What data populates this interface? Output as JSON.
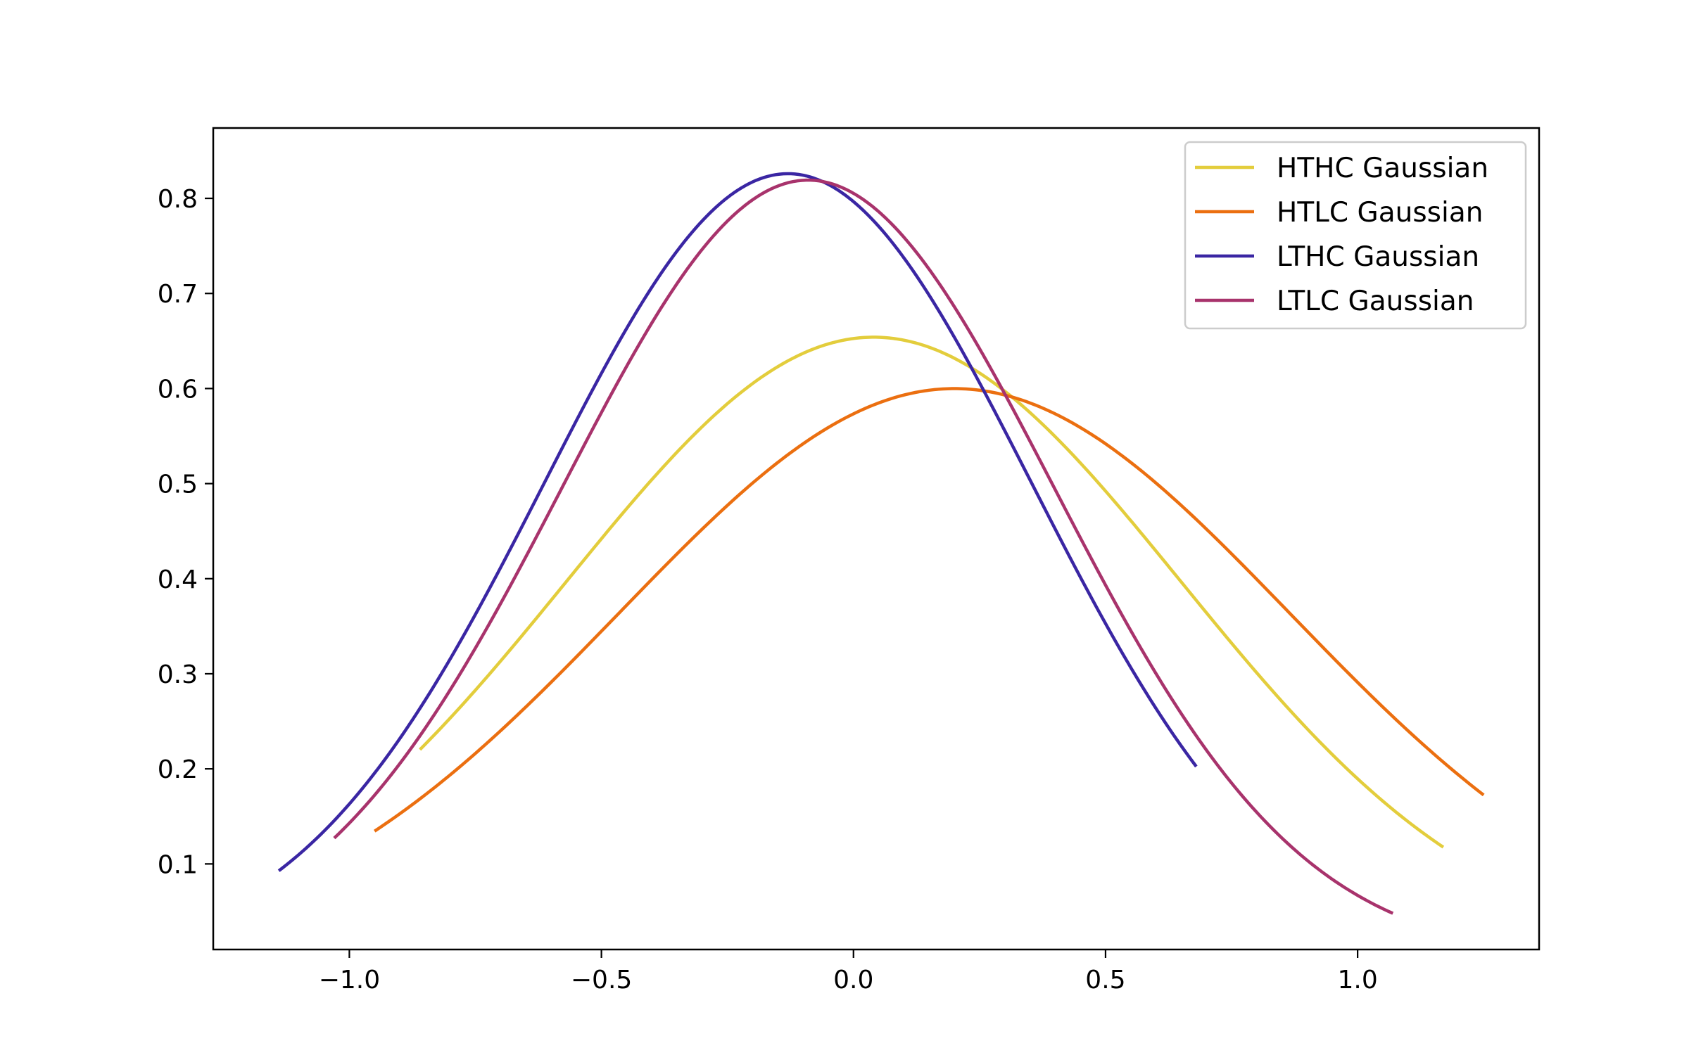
{
  "chart_data": {
    "type": "line",
    "title": "",
    "xlabel": "",
    "ylabel": "",
    "xlim": [
      -1.27,
      1.36
    ],
    "ylim": [
      0.01,
      0.874
    ],
    "x_ticks": [
      -1.0,
      -0.5,
      0.0,
      0.5,
      1.0
    ],
    "x_tick_labels": [
      "−1.0",
      "−0.5",
      "0.0",
      "0.5",
      "1.0"
    ],
    "y_ticks": [
      0.1,
      0.2,
      0.3,
      0.4,
      0.5,
      0.6,
      0.7,
      0.8
    ],
    "y_tick_labels": [
      "0.1",
      "0.2",
      "0.3",
      "0.4",
      "0.5",
      "0.6",
      "0.7",
      "0.8"
    ],
    "grid": false,
    "legend_position": "top-right",
    "series": [
      {
        "name": "HTHC Gaussian",
        "color": "#e3cd3c",
        "mean": 0.04,
        "std": 0.61,
        "x_range": [
          -0.86,
          1.17
        ]
      },
      {
        "name": "HTLC Gaussian",
        "color": "#eb6f10",
        "mean": 0.2,
        "std": 0.665,
        "x_range": [
          -0.95,
          1.25
        ]
      },
      {
        "name": "LTHC Gaussian",
        "color": "#3a26a3",
        "mean": -0.13,
        "std": 0.483,
        "x_range": [
          -1.14,
          0.68
        ]
      },
      {
        "name": "LTLC Gaussian",
        "color": "#a8336c",
        "mean": -0.09,
        "std": 0.487,
        "x_range": [
          -1.03,
          1.07
        ]
      }
    ]
  }
}
